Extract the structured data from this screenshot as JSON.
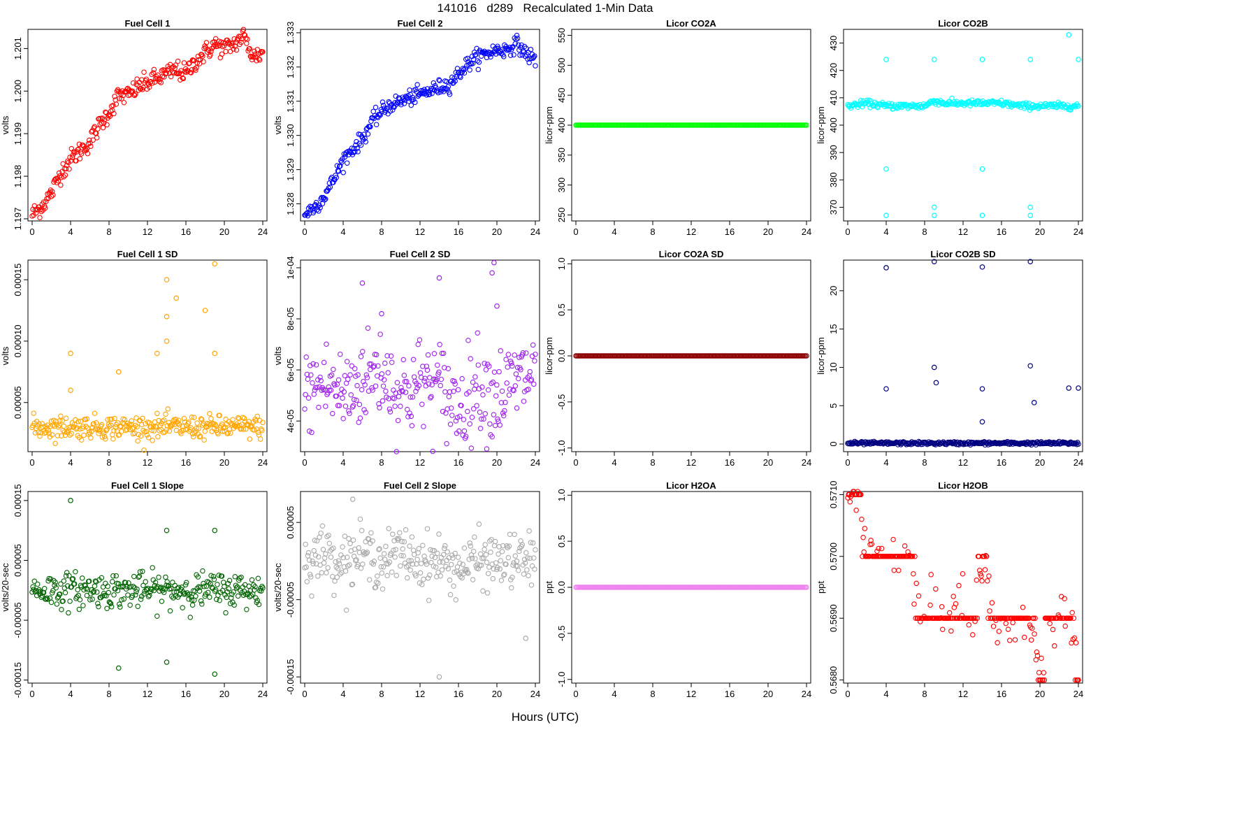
{
  "figure": {
    "title": "141016   d289   Recalculated 1-Min Data",
    "xlabel": "Hours (UTC)"
  },
  "chart_data": [
    {
      "id": "fc1",
      "type": "scatter",
      "title": "Fuel Cell 1",
      "ylabel": "volts",
      "color": "#ff0000",
      "xlim": [
        0,
        24
      ],
      "xticks": [
        0,
        4,
        8,
        12,
        16,
        20,
        24
      ],
      "ylim": [
        1.19695,
        1.20145
      ],
      "yticks": [
        1.197,
        1.198,
        1.199,
        1.2,
        1.201
      ],
      "ytick_labels": [
        "1.197",
        "1.198",
        "1.199",
        "1.200",
        "1.201"
      ],
      "x": [
        0,
        1,
        2,
        3,
        4,
        5,
        6,
        7,
        8,
        9,
        10,
        11,
        12,
        13,
        14,
        15,
        16,
        17,
        18,
        19,
        20,
        21,
        22,
        23,
        24
      ],
      "y": [
        1.1971,
        1.1973,
        1.1976,
        1.1981,
        1.1984,
        1.1986,
        1.1988,
        1.1992,
        1.1995,
        1.1999,
        1.1999,
        1.2001,
        1.2002,
        1.2003,
        1.2004,
        1.2005,
        1.2004,
        1.2007,
        1.2009,
        1.2011,
        1.201,
        1.2011,
        1.2013,
        1.2008,
        1.2009
      ]
    },
    {
      "id": "fc2",
      "type": "scatter",
      "title": "Fuel Cell 2",
      "ylabel": "volts",
      "color": "#0000ff",
      "xlim": [
        0,
        24
      ],
      "xticks": [
        0,
        4,
        8,
        12,
        16,
        20,
        24
      ],
      "ylim": [
        1.3275,
        1.3331
      ],
      "yticks": [
        1.328,
        1.329,
        1.33,
        1.331,
        1.332,
        1.333
      ],
      "ytick_labels": [
        "1.328",
        "1.329",
        "1.330",
        "1.331",
        "1.332",
        "1.333"
      ],
      "x": [
        0,
        1,
        2,
        3,
        4,
        5,
        6,
        7,
        8,
        9,
        10,
        11,
        12,
        13,
        14,
        15,
        16,
        17,
        18,
        19,
        20,
        21,
        22,
        23,
        24
      ],
      "y": [
        1.3277,
        1.3279,
        1.3282,
        1.3287,
        1.3293,
        1.3296,
        1.3299,
        1.3304,
        1.3307,
        1.3309,
        1.331,
        1.3311,
        1.3312,
        1.3313,
        1.3314,
        1.3315,
        1.3318,
        1.3321,
        1.3323,
        1.3324,
        1.3325,
        1.3325,
        1.3327,
        1.3324,
        1.3322
      ]
    },
    {
      "id": "co2a",
      "type": "scatter",
      "title": "Licor CO2A",
      "ylabel": "licor-ppm",
      "color": "#00ff00",
      "xlim": [
        0,
        24
      ],
      "xticks": [
        0,
        4,
        8,
        12,
        16,
        20,
        24
      ],
      "ylim": [
        240,
        560
      ],
      "yticks": [
        250,
        300,
        350,
        400,
        450,
        500,
        550
      ],
      "ytick_labels": [
        "250",
        "300",
        "350",
        "400",
        "450",
        "500",
        "550"
      ],
      "x": [
        0,
        24
      ],
      "y": [
        400,
        400
      ]
    },
    {
      "id": "co2b",
      "type": "scatter",
      "title": "Licor CO2B",
      "ylabel": "licor-ppm",
      "color": "#00ffff",
      "xlim": [
        0,
        24
      ],
      "xticks": [
        0,
        4,
        8,
        12,
        16,
        20,
        24
      ],
      "ylim": [
        365,
        435
      ],
      "yticks": [
        370,
        380,
        390,
        400,
        410,
        420,
        430
      ],
      "ytick_labels": [
        "370",
        "380",
        "390",
        "400",
        "410",
        "420",
        "430"
      ],
      "x": [
        0,
        2,
        4,
        6,
        8,
        9,
        10,
        12,
        14,
        16,
        18,
        19,
        20,
        22,
        24,
        4,
        4,
        4,
        9,
        9,
        9,
        14,
        14,
        14,
        19,
        19,
        19,
        23,
        24
      ],
      "y": [
        407,
        408,
        407,
        407,
        407,
        409,
        408,
        408,
        408,
        408,
        407,
        407,
        407,
        407,
        407,
        424,
        384,
        367,
        424,
        370,
        367,
        424,
        384,
        367,
        424,
        370,
        367,
        433,
        424
      ]
    },
    {
      "id": "fc1sd",
      "type": "scatter",
      "title": "Fuel Cell 1 SD",
      "ylabel": "volts",
      "color": "#ffa500",
      "xlim": [
        0,
        24
      ],
      "xticks": [
        0,
        4,
        8,
        12,
        16,
        20,
        24
      ],
      "ylim": [
        1e-05,
        0.000166
      ],
      "yticks": [
        5e-05,
        0.0001,
        0.00015
      ],
      "ytick_labels": [
        "0.00005",
        "0.00010",
        "0.00015"
      ],
      "x": [
        0,
        2,
        4,
        6,
        8,
        10,
        12,
        14,
        16,
        18,
        20,
        22,
        24,
        4,
        4,
        9,
        13,
        14,
        14,
        14,
        15,
        18,
        19,
        19
      ],
      "y": [
        3e-05,
        3e-05,
        3e-05,
        3e-05,
        3e-05,
        3e-05,
        3e-05,
        3e-05,
        3e-05,
        3e-05,
        3e-05,
        3e-05,
        3e-05,
        9e-05,
        6e-05,
        7.5e-05,
        9e-05,
        0.00015,
        0.00012,
        0.0001,
        0.000135,
        0.000125,
        0.000163,
        9e-05
      ]
    },
    {
      "id": "fc2sd",
      "type": "scatter",
      "title": "Fuel Cell 2 SD",
      "ylabel": "volts",
      "color": "#a020f0",
      "xlim": [
        0,
        24
      ],
      "xticks": [
        0,
        4,
        8,
        12,
        16,
        20,
        24
      ],
      "ylim": [
        2.8e-05,
        0.000103
      ],
      "yticks": [
        4e-05,
        6e-05,
        8e-05,
        0.0001
      ],
      "ytick_labels": [
        "4e-05",
        "6e-05",
        "8e-05",
        "1e-04"
      ],
      "x": [
        0,
        2,
        4,
        6,
        8,
        10,
        12,
        14,
        16,
        18,
        20,
        22,
        24,
        6,
        8,
        14,
        19.5,
        19.7,
        20
      ],
      "y": [
        5e-05,
        5.5e-05,
        5e-05,
        5.6e-05,
        6e-05,
        5e-05,
        5.5e-05,
        5.4e-05,
        4.5e-05,
        5.5e-05,
        5e-05,
        5.5e-05,
        6e-05,
        9.4e-05,
        8.2e-05,
        9.6e-05,
        9.8e-05,
        0.000102,
        8.5e-05
      ]
    },
    {
      "id": "co2asd",
      "type": "scatter",
      "title": "Licor CO2A SD",
      "ylabel": "licor-ppm",
      "color": "#8b0000",
      "xlim": [
        0,
        24
      ],
      "xticks": [
        0,
        4,
        8,
        12,
        16,
        20,
        24
      ],
      "ylim": [
        -1.04,
        1.04
      ],
      "yticks": [
        -1,
        -0.5,
        0,
        0.5,
        1
      ],
      "ytick_labels": [
        "-1.0",
        "-0.5",
        "0.0",
        "0.5",
        "1.0"
      ],
      "x": [
        0,
        24
      ],
      "y": [
        0,
        0
      ]
    },
    {
      "id": "co2bsd",
      "type": "scatter",
      "title": "Licor CO2B SD",
      "ylabel": "licor-ppm",
      "color": "#000080",
      "xlim": [
        0,
        24
      ],
      "xticks": [
        0,
        4,
        8,
        12,
        16,
        20,
        24
      ],
      "ylim": [
        -1,
        24
      ],
      "yticks": [
        0,
        5,
        10,
        15,
        20
      ],
      "ytick_labels": [
        "0",
        "5",
        "10",
        "15",
        "20"
      ],
      "x": [
        0,
        4,
        8,
        12,
        16,
        20,
        24,
        4,
        4,
        9,
        9,
        9.2,
        14,
        14,
        14,
        19,
        19,
        19.4,
        23,
        24
      ],
      "y": [
        0.1,
        0.1,
        0.1,
        0.1,
        0.1,
        0.1,
        0.1,
        23,
        7.2,
        23.8,
        10,
        8,
        23.1,
        7.2,
        2.9,
        23.8,
        10.2,
        5.4,
        7.3,
        7.3
      ]
    },
    {
      "id": "fc1slope",
      "type": "scatter",
      "title": "Fuel Cell 1 Slope",
      "ylabel": "volts/20-sec",
      "color": "#006400",
      "xlim": [
        0,
        24
      ],
      "xticks": [
        0,
        4,
        8,
        12,
        16,
        20,
        24
      ],
      "ylim": [
        -0.000155,
        0.000165
      ],
      "yticks": [
        -0.00015,
        -5e-05,
        5e-05,
        0.00015
      ],
      "ytick_labels": [
        "-0.00015",
        "-0.00005",
        "0.00005",
        "0.00015"
      ],
      "x": [
        0,
        2,
        4,
        6,
        8,
        10,
        12,
        14,
        16,
        18,
        20,
        22,
        24,
        4,
        9,
        14,
        14,
        19,
        19
      ],
      "y": [
        0,
        0,
        0,
        0,
        0,
        0,
        0,
        0,
        0,
        0,
        0,
        0,
        0,
        0.00015,
        -0.00013,
        0.0001,
        -0.00012,
        0.0001,
        -0.00014
      ]
    },
    {
      "id": "fc2slope",
      "type": "scatter",
      "title": "Fuel Cell 2 Slope",
      "ylabel": "volts/20-sec",
      "color": "#aaaaaa",
      "xlim": [
        0,
        24
      ],
      "xticks": [
        0,
        4,
        8,
        12,
        16,
        20,
        24
      ],
      "ylim": [
        -0.000158,
        9e-05
      ],
      "yticks": [
        -0.00015,
        -5e-05,
        5e-05
      ],
      "ytick_labels": [
        "-0.00015",
        "-0.00005",
        "0.00005"
      ],
      "x": [
        0,
        2,
        4,
        6,
        8,
        10,
        12,
        14,
        16,
        18,
        20,
        22,
        24,
        5,
        14,
        23
      ],
      "y": [
        0,
        1e-05,
        0,
        1e-05,
        0,
        1e-05,
        0,
        0,
        -1e-05,
        0,
        0,
        0,
        0,
        8e-05,
        -0.00015,
        -0.0001
      ]
    },
    {
      "id": "h2oa",
      "type": "scatter",
      "title": "Licor H2OA",
      "ylabel": "ppt",
      "color": "#ee82ee",
      "xlim": [
        0,
        24
      ],
      "xticks": [
        0,
        4,
        8,
        12,
        16,
        20,
        24
      ],
      "ylim": [
        -1.04,
        1.04
      ],
      "yticks": [
        -1,
        -0.5,
        0,
        0.5,
        1
      ],
      "ytick_labels": [
        "-1.0",
        "-0.5",
        "0.0",
        "0.5",
        "1.0"
      ],
      "x": [
        0,
        24
      ],
      "y": [
        0,
        0
      ]
    },
    {
      "id": "h2ob",
      "type": "scatter",
      "title": "Licor H2OB",
      "ylabel": "ppt",
      "color": "#ff0000",
      "xlim": [
        0,
        24
      ],
      "xticks": [
        0,
        4,
        8,
        12,
        16,
        20,
        24
      ],
      "ylim": [
        0.56795,
        0.57105
      ],
      "yticks": [
        0.568,
        0.569,
        0.57,
        0.571
      ],
      "ytick_labels": [
        "0.5680",
        "0.5690",
        "0.5700",
        "0.5710"
      ],
      "x": [
        0,
        1,
        1.5,
        2,
        3,
        4,
        6,
        8,
        9,
        10,
        11,
        12,
        13,
        14,
        15,
        16,
        18,
        19,
        20,
        21,
        22,
        23,
        24
      ],
      "y": [
        0.571,
        0.571,
        0.5705,
        0.57,
        0.57,
        0.57,
        0.57,
        0.569,
        0.5695,
        0.569,
        0.569,
        0.5695,
        0.569,
        0.57,
        0.569,
        0.569,
        0.569,
        0.569,
        0.5682,
        0.5688,
        0.569,
        0.569,
        0.5682
      ]
    }
  ]
}
